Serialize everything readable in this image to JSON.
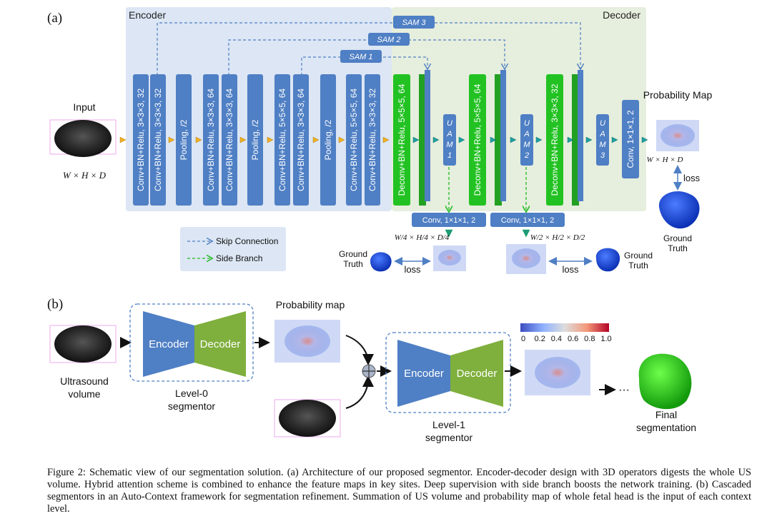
{
  "panel_a": {
    "label": "(a)",
    "encoder_title": "Encoder",
    "decoder_title": "Decoder",
    "input_label": "Input",
    "input_dims": "W × H × D",
    "encoder_blocks": [
      "Conv+BN+Relu, 3×3×3, 32",
      "Conv+BN+Relu, 3×3×3, 32",
      "Pooling, /2",
      "Conv+BN+Relu, 3×3×3, 64",
      "Conv+BN+Relu, 3×3×3, 64",
      "Pooling, /2",
      "Conv+BN+Relu, 5×5×5, 64",
      "Conv+BN+Relu, 3×3×3, 64",
      "Pooling, /2",
      "Conv+BN+Relu, 5×5×5, 64",
      "Conv+BN+Relu, 3×3×3, 32"
    ],
    "decoder_blocks": [
      "Deconv+BN+Relu, 5×5×5, 64",
      "Deconv+BN+Relu, 5×5×5, 64",
      "Deconv+BN+Relu, 3×3×3, 32"
    ],
    "uam_labels": [
      "U A M 1",
      "U A M 2",
      "U A M 3"
    ],
    "final_conv": "Conv, 1×1×1, 2",
    "side_conv": [
      "Conv, 1×1×1, 2",
      "Conv, 1×1×1, 2"
    ],
    "sam_labels": [
      "SAM 1",
      "SAM 2",
      "SAM 3"
    ],
    "prob_map_label": "Probability Map",
    "prob_map_dims": "W × H × D",
    "side1_dims": "W/4 × H/4 × D/4",
    "side2_dims": "W/2 × H/2 × D/2",
    "loss": "loss",
    "ground_truth": "Ground Truth",
    "legend": {
      "skip": "Skip Connection",
      "side": "Side Branch"
    },
    "colors": {
      "encoder_bg": "#dce6f4",
      "decoder_bg": "#e6eedd",
      "block_blue": "#4f7fc4",
      "block_green": "#22c222",
      "skip_line": "#4f7fc4",
      "side_line": "#22bb22"
    }
  },
  "panel_b": {
    "label": "(b)",
    "encoder": "Encoder",
    "decoder": "Decoder",
    "prob_map": "Probability map",
    "ultrasound_volume": "Ultrasound volume",
    "level0": "Level-0 segmentor",
    "level1": "Level-1 segmentor",
    "colorbar_ticks": [
      "0",
      "0.2",
      "0.4",
      "0.6",
      "0.8",
      "1.0"
    ],
    "ellipsis": "···",
    "final_seg": "Final segmentation"
  },
  "caption": "Figure 2: Schematic view of our segmentation solution. (a) Architecture of our proposed segmentor. Encoder-decoder design with 3D operators digests the whole US volume. Hybrid attention scheme is combined to enhance the feature maps in key sites. Deep supervision with side branch boosts the network training. (b) Cascaded segmentors in an Auto-Context framework for segmentation refinement. Summation of US volume and probability map of whole fetal head is the input of each context level."
}
